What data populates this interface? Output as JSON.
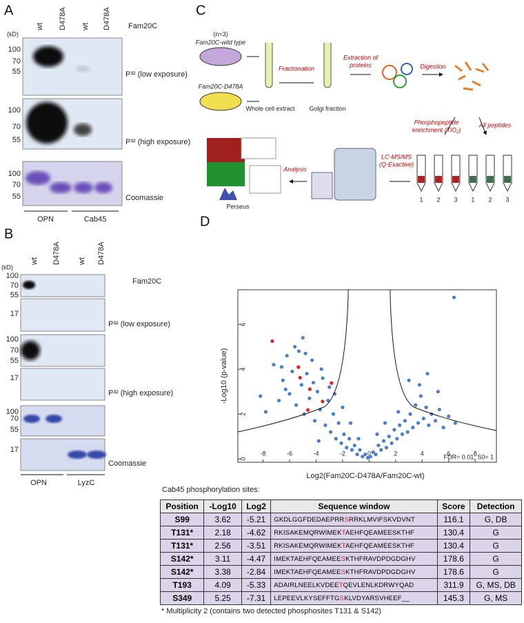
{
  "panel_a": {
    "label": "A",
    "unit": "(kD)",
    "lanes": [
      "wt",
      "D478A",
      "wt",
      "D478A"
    ],
    "enzyme": "Fam20C",
    "blots": [
      {
        "ticks": [
          "100",
          "70",
          "55"
        ],
        "caption": "P³² (low exposure)"
      },
      {
        "ticks": [
          "100",
          "70",
          "55"
        ],
        "caption": "P³² (high exposure)"
      },
      {
        "ticks": [
          "100",
          "70",
          "55"
        ],
        "caption": "Coomassie"
      }
    ],
    "groups": [
      "OPN",
      "Cab45"
    ]
  },
  "panel_b": {
    "label": "B",
    "unit": "(kD)",
    "lanes": [
      "wt",
      "D478A",
      "wt",
      "D478A"
    ],
    "enzyme": "Fam20C",
    "blots": [
      {
        "ticks": [
          "100",
          "70",
          "55"
        ]
      },
      {
        "ticks": [
          "17"
        ],
        "caption": "P³² (low exposure)"
      },
      {
        "ticks": [
          "100",
          "70",
          "55"
        ]
      },
      {
        "ticks": [
          "17"
        ],
        "caption": "P³² (high exposure)"
      },
      {
        "ticks": [
          "100",
          "70",
          "55"
        ]
      },
      {
        "ticks": [
          "17"
        ],
        "caption": "Coomassie"
      }
    ],
    "groups": [
      "OPN",
      "LyzC"
    ]
  },
  "panel_c": {
    "label": "C",
    "n": "(n=3)",
    "wt": "Fam20C-wild type",
    "mut": "Fam20C-D478A",
    "whole": "Whole cell extract",
    "golgi": "Golgi fraction",
    "fractionation": "Fractionation",
    "extraction": [
      "Extraction of",
      "proteins"
    ],
    "digestion": "Digestion",
    "enrichment": [
      "Phosphopeptide",
      "enrichment (TiO₂)"
    ],
    "all": "All peptides",
    "lcms": [
      "LC-MS/MS",
      "(Q-Exactive)"
    ],
    "analysis": "Analysis",
    "perseus": "Perseus",
    "tubes": [
      "1",
      "2",
      "3"
    ]
  },
  "chart_data": {
    "type": "scatter",
    "label": "D",
    "xlabel": "Log2(Fam20C-D478A/Fam20C-wt)",
    "ylabel": "-Log10 (p-value)",
    "annotation": "FDR= 0.01; S0= 1",
    "xlim": [
      -9.9,
      9.6
    ],
    "ylim": [
      -0.15,
      7.54
    ],
    "xticks": [
      -8,
      -6,
      -4,
      -2,
      0,
      2,
      4,
      6,
      8
    ],
    "yticks": [
      0,
      2,
      4,
      6
    ],
    "series": [
      {
        "color": "#4a7fc8",
        "x": [
          -7.8,
          -7.2,
          -6.8,
          -6.5,
          -6.2,
          -6.0,
          -5.8,
          -5.5,
          -5.3,
          -5.1,
          -4.9,
          -4.7,
          -4.5,
          -4.3,
          -4.1,
          -3.9,
          -3.7,
          -3.5,
          -3.3,
          -3.1,
          -2.9,
          -2.7,
          -2.5,
          -2.3,
          -2.1,
          -1.9,
          -1.7,
          -1.5,
          -1.3,
          -1.1,
          -0.9,
          -0.7,
          -0.5,
          -0.3,
          -0.1,
          0.1,
          0.3,
          0.5,
          0.7,
          0.9,
          1.1,
          1.3,
          1.5,
          1.7,
          1.9,
          2.1,
          2.3,
          2.5,
          2.7,
          2.9,
          3.1,
          3.3,
          3.5,
          3.7,
          3.9,
          4.1,
          4.3,
          4.5,
          4.7,
          5.0,
          5.3,
          5.6,
          6.0,
          6.4,
          6.5,
          -6.3,
          -5.6,
          -4.8,
          -4.2,
          -3.6,
          -3.0,
          -2.6,
          -2.0,
          -1.4,
          -0.8,
          0.6,
          1.2,
          2.2,
          3.0,
          3.8,
          4.4,
          5.2,
          -8.2,
          -6.6,
          -5.0,
          -3.8
        ],
        "values": [
          2.1,
          4.2,
          2.6,
          3.5,
          4.6,
          2.9,
          3.9,
          2.4,
          4.8,
          3.3,
          2.0,
          3.8,
          2.7,
          4.4,
          1.7,
          3.0,
          2.2,
          3.6,
          1.5,
          2.6,
          1.2,
          2.0,
          0.9,
          1.6,
          0.7,
          1.1,
          0.5,
          0.9,
          0.4,
          0.6,
          0.2,
          0.4,
          0.1,
          0.2,
          0.05,
          0.1,
          0.3,
          0.2,
          0.6,
          0.4,
          0.8,
          0.5,
          1.0,
          0.7,
          1.3,
          0.9,
          1.5,
          1.1,
          1.7,
          1.2,
          2.0,
          1.4,
          2.4,
          1.6,
          2.8,
          1.8,
          2.3,
          1.5,
          2.0,
          1.7,
          2.2,
          1.4,
          1.9,
          7.2,
          1.6,
          3.1,
          5.0,
          4.7,
          3.4,
          4.0,
          3.2,
          2.9,
          2.3,
          1.6,
          0.9,
          1.1,
          1.6,
          2.1,
          3.5,
          3.3,
          3.8,
          3.0,
          2.8,
          4.1,
          5.4,
          0.8
        ]
      },
      {
        "color": "#e0202a",
        "x": [
          -7.31,
          -5.33,
          -5.21,
          -4.62,
          -3.51,
          -4.47,
          -2.84
        ],
        "values": [
          5.25,
          4.09,
          3.62,
          2.18,
          2.56,
          3.11,
          3.38
        ]
      }
    ]
  },
  "table": {
    "title": "Cab45 phosphorylation sites:",
    "headers": [
      "Position",
      "-Log10",
      "Log2",
      "Sequence window",
      "Score",
      "Detection"
    ],
    "rows": [
      [
        "S99",
        3.62,
        -5.21,
        [
          "GKDLGGFDEDAEPRR",
          "S",
          "RRKLMVIFSKVDVNT"
        ],
        116.1,
        "G, DB"
      ],
      [
        "T131*",
        2.18,
        -4.62,
        [
          "RKISAKEMQRWIMEK",
          "T",
          "AEHFQEAMEESKTHF"
        ],
        130.4,
        "G"
      ],
      [
        "T131*",
        2.56,
        -3.51,
        [
          "RKISAKEMQRWIMEK",
          "T",
          "AEHFQEAMEESKTHF"
        ],
        130.4,
        "G"
      ],
      [
        "S142*",
        3.11,
        -4.47,
        [
          "IMEKTAEHFQEAMEE",
          "S",
          "KTHFRAVDPDGDGHV"
        ],
        178.6,
        "G"
      ],
      [
        "S142*",
        3.38,
        -2.84,
        [
          "IMEKTAEHFQEAMEE",
          "S",
          "KTHFRAVDPDGDGHV"
        ],
        178.6,
        "G"
      ],
      [
        "T193",
        4.09,
        -5.33,
        [
          "ADAIRLNEELKVDEE",
          "T",
          "QEVLENLKDRWYQAD"
        ],
        311.9,
        "G, MS, DB"
      ],
      [
        "S349",
        5.25,
        -7.31,
        [
          "LEPEEVLKYSEFFTG",
          "S",
          "KLVDYARSVHEEF__"
        ],
        145.3,
        "G, MS"
      ]
    ],
    "footnote": "* Multiplicity 2 (contains two detected phosphosites T131 & S142)"
  }
}
